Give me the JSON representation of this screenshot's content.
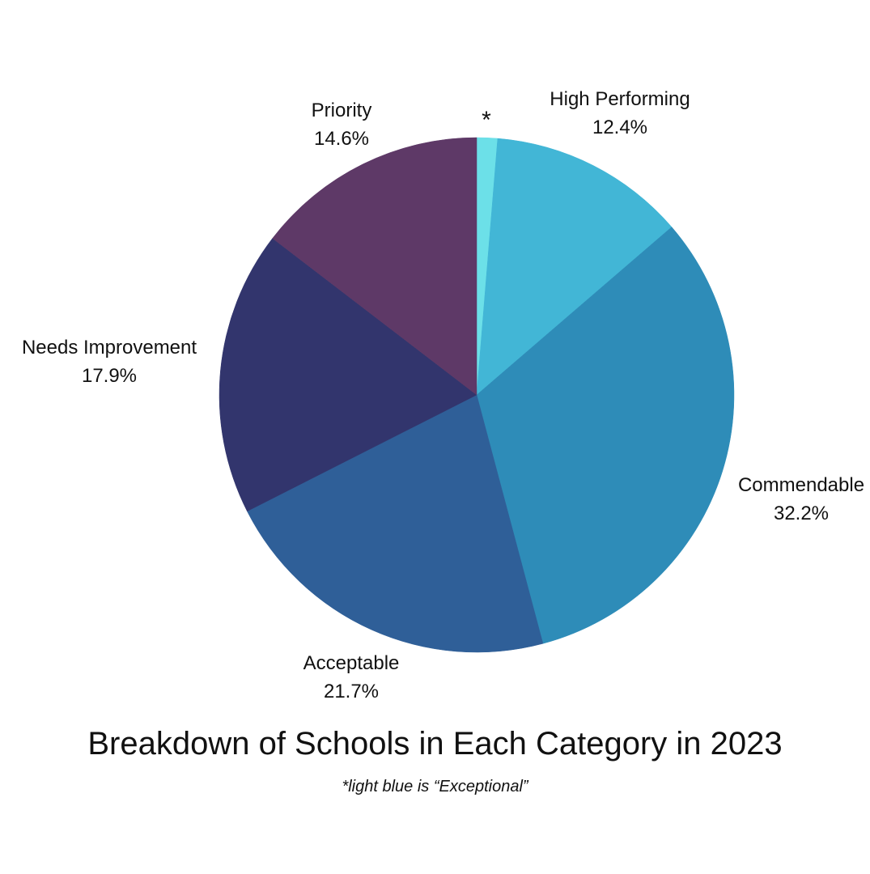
{
  "chart_data": {
    "type": "pie",
    "title": "Breakdown of Schools in Each Category in 2023",
    "footnote": "*light blue is “Exceptional”",
    "start": "12 o'clock",
    "direction": "clockwise",
    "slices": [
      {
        "name": "",
        "marker": "*",
        "value": 1.3,
        "value_label": "",
        "color": "#6CE0E8"
      },
      {
        "name": "High Performing",
        "value": 12.4,
        "value_label": "12.4%",
        "color": "#42B6D6"
      },
      {
        "name": "Commendable",
        "value": 32.2,
        "value_label": "32.2%",
        "color": "#2E8CB8"
      },
      {
        "name": "Acceptable",
        "value": 21.7,
        "value_label": "21.7%",
        "color": "#2F5F98"
      },
      {
        "name": "Needs Improvement",
        "value": 17.9,
        "value_label": "17.9%",
        "color": "#32356D"
      },
      {
        "name": "Priority",
        "value": 14.6,
        "value_label": "14.6%",
        "color": "#5E3967"
      }
    ]
  }
}
